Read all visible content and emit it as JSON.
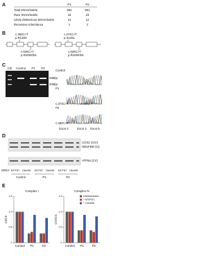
{
  "panel_a": {
    "label": "A",
    "columns": [
      "P1",
      "P2"
    ],
    "rows": [
      [
        "Total SNVs/Indels",
        "662",
        "801"
      ],
      [
        "Rare SNVs/Indels",
        "18",
        "23"
      ],
      [
        "Likely deleterious SNVs/Indels",
        "13",
        "12"
      ],
      [
        "Recessive Inheritance",
        "1",
        "1"
      ]
    ]
  },
  "panel_b": {
    "label": "B",
    "left": {
      "top": [
        "c.382C>T",
        "p.R128X"
      ],
      "bottom": [
        "c.626C>T",
        "p.R209Xfs5"
      ]
    },
    "right": {
      "top": [
        "c.374C>T",
        "p.S125L"
      ],
      "bottom": [
        "c.626C>T",
        "p.R209Xfs5"
      ]
    }
  },
  "panel_c": {
    "label": "C",
    "gel_lanes": [
      "Ctrl",
      "Control",
      "P1",
      "P2"
    ],
    "gel_sizes": [
      "296bp",
      "206bp"
    ],
    "trace_rows": [
      "Control",
      "P1",
      "P2"
    ],
    "variants": [
      "c.374C>T",
      "c.382C>T",
      "c.626C>T"
    ],
    "exons": [
      "Exon 2",
      "Exon 3",
      "Exon 5"
    ]
  },
  "panel_d": {
    "label": "D",
    "bands": [
      "COX2 (CIV)",
      "NDUFB8 (CI)",
      "ATP5a (CV)"
    ],
    "cdna_label": "cDNA",
    "lanes": [
      "MT/FNT",
      "C8orf38"
    ],
    "groups": [
      "Control",
      "P1",
      "P2"
    ]
  },
  "panel_e": {
    "label": "E",
    "series": [
      {
        "name": "Untransduced",
        "color": "#5a5a5a"
      },
      {
        "name": "+ MT/FNT",
        "color": "#c0392b"
      },
      {
        "name": "+ C8orf38",
        "color": "#3b5aa8"
      }
    ],
    "charts": [
      {
        "type": "bar",
        "title": "Complex I",
        "y_label": "CI/CS",
        "categories": [
          "Control",
          "P1",
          "P2"
        ],
        "values": [
          [
            1.0,
            0.3,
            0.3
          ],
          [
            1.0,
            0.35,
            0.3
          ],
          [
            1.0,
            0.9,
            0.8
          ]
        ],
        "ylim": [
          0,
          1.5
        ],
        "yticks": [
          0,
          0.5,
          {
            "value": 1,
            "label": "1.0"
          },
          1.5
        ]
      },
      {
        "type": "bar",
        "title": "Complex IV",
        "y_label": "CIV/CS",
        "categories": [
          "Control",
          "P1",
          "P2"
        ],
        "values": [
          [
            1.0,
            0.4,
            0.4
          ],
          [
            1.0,
            0.4,
            0.35
          ],
          [
            1.0,
            0.9,
            0.85
          ]
        ],
        "ylim": [
          0,
          1.5
        ],
        "yticks": [
          0,
          0.5,
          {
            "value": 1,
            "label": "1.0"
          },
          1.5
        ]
      }
    ]
  }
}
